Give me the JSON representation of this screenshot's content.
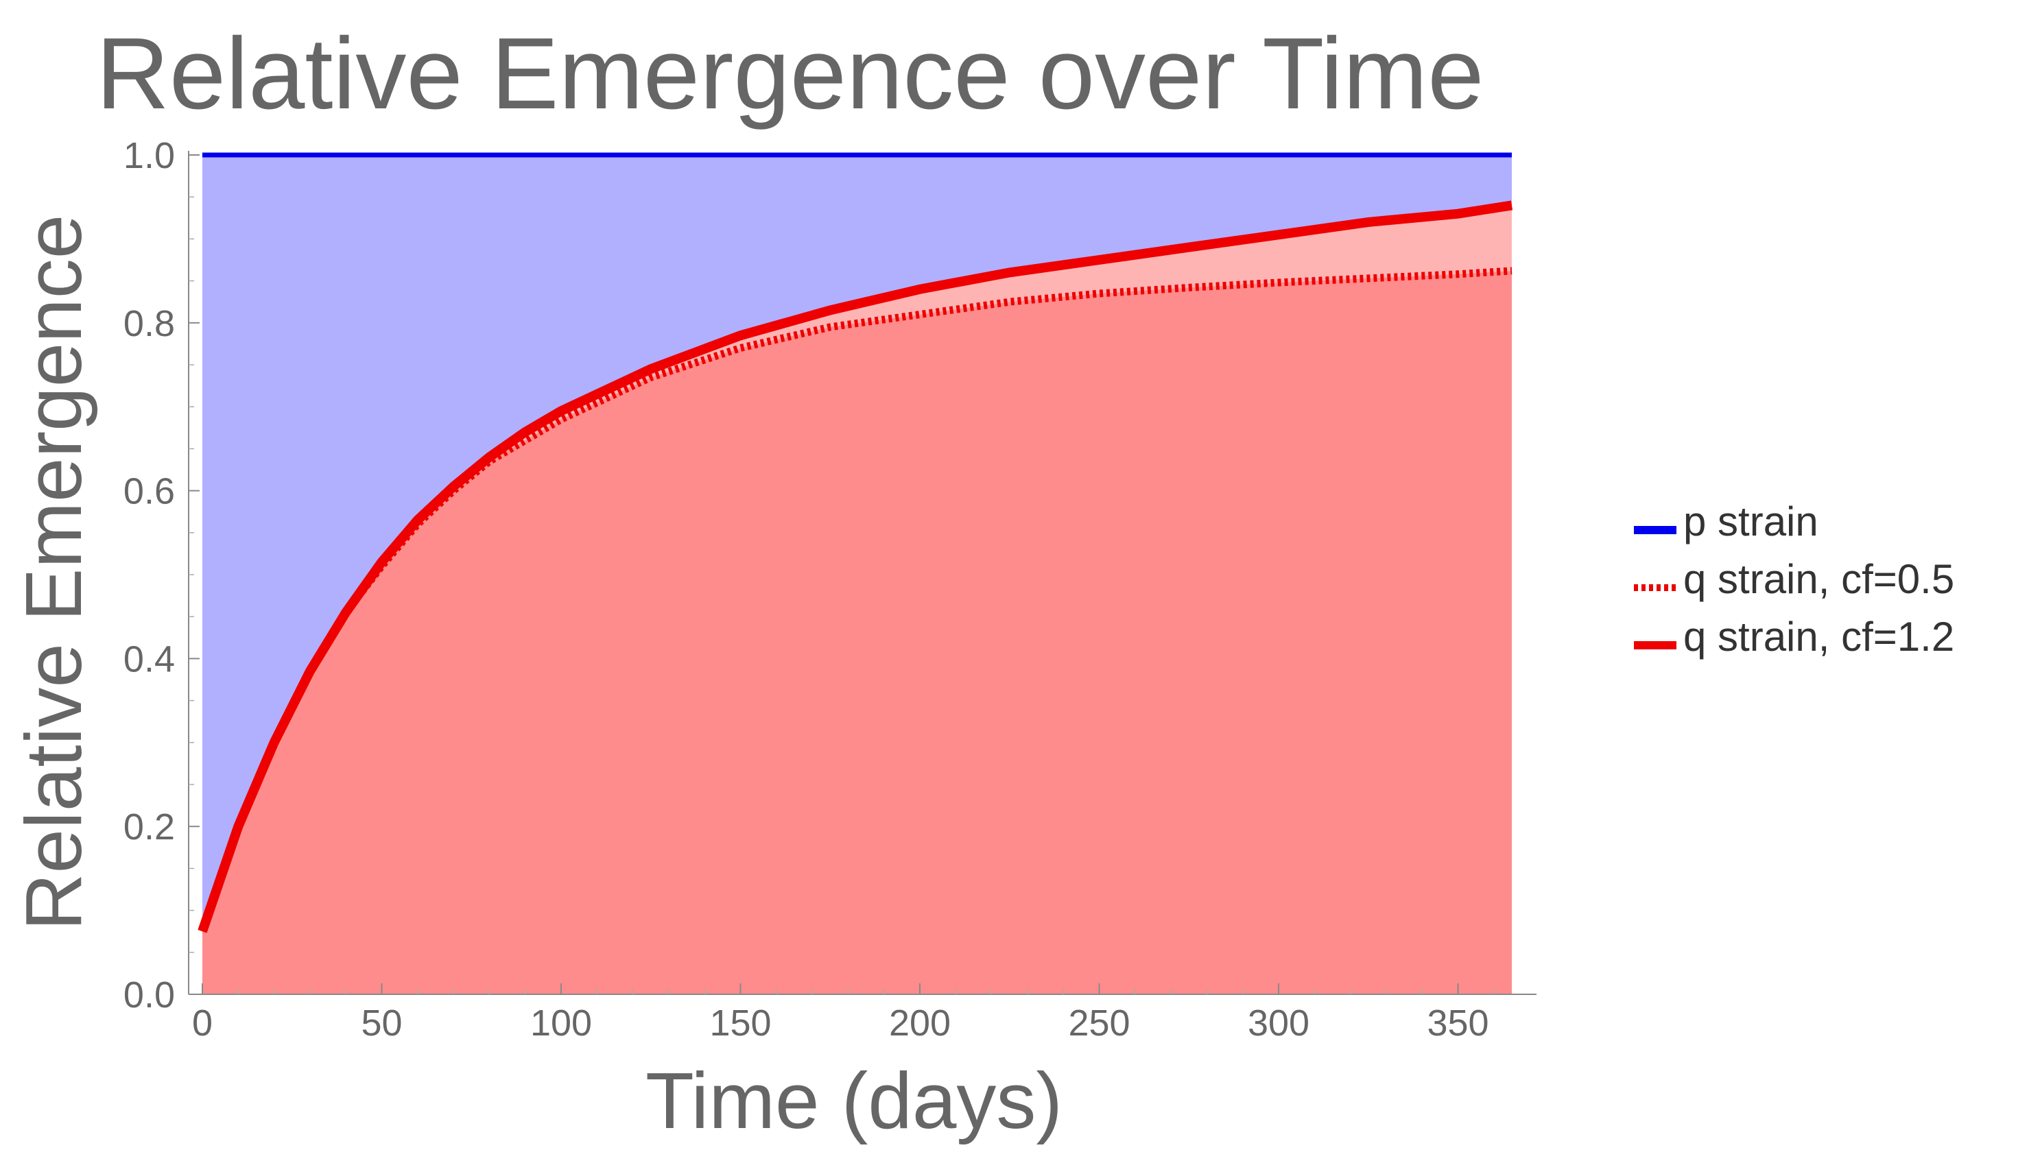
{
  "chart_data": {
    "type": "area",
    "title": "Relative Emergence over Time",
    "xlabel": "Time (days)",
    "ylabel": "Relative Emergence",
    "xlim": [
      0,
      365
    ],
    "ylim": [
      0,
      1.0
    ],
    "x_ticks": [
      0,
      50,
      100,
      150,
      200,
      250,
      300,
      350
    ],
    "y_ticks": [
      0.0,
      0.2,
      0.4,
      0.6,
      0.8,
      1.0
    ],
    "x_tick_labels": [
      "0",
      "50",
      "100",
      "150",
      "200",
      "250",
      "300",
      "350"
    ],
    "y_tick_labels": [
      "0.0",
      "0.2",
      "0.4",
      "0.6",
      "0.8",
      "1.0"
    ],
    "grid": false,
    "legend_position": "right",
    "x": [
      0,
      10,
      20,
      30,
      40,
      50,
      60,
      70,
      80,
      90,
      100,
      125,
      150,
      175,
      200,
      225,
      250,
      275,
      300,
      325,
      350,
      365
    ],
    "series": [
      {
        "name": "p strain",
        "color": "#0000ee",
        "fill": "#b0b0ff",
        "style": "solid",
        "values": [
          1.0,
          1.0,
          1.0,
          1.0,
          1.0,
          1.0,
          1.0,
          1.0,
          1.0,
          1.0,
          1.0,
          1.0,
          1.0,
          1.0,
          1.0,
          1.0,
          1.0,
          1.0,
          1.0,
          1.0,
          1.0,
          1.0
        ]
      },
      {
        "name": "q strain, cf=0.5",
        "color": "#ee0000",
        "fill": "#ff8c8c",
        "style": "dotted",
        "values": [
          0.075,
          0.2,
          0.3,
          0.385,
          0.455,
          0.51,
          0.56,
          0.6,
          0.635,
          0.66,
          0.685,
          0.735,
          0.77,
          0.795,
          0.81,
          0.825,
          0.835,
          0.842,
          0.848,
          0.853,
          0.858,
          0.862
        ]
      },
      {
        "name": "q strain, cf=1.2",
        "color": "#ee0000",
        "fill": "#ffb4b4",
        "style": "solid",
        "values": [
          0.075,
          0.2,
          0.3,
          0.385,
          0.455,
          0.515,
          0.565,
          0.605,
          0.64,
          0.67,
          0.695,
          0.745,
          0.785,
          0.815,
          0.84,
          0.86,
          0.875,
          0.89,
          0.905,
          0.92,
          0.93,
          0.94
        ]
      }
    ]
  }
}
